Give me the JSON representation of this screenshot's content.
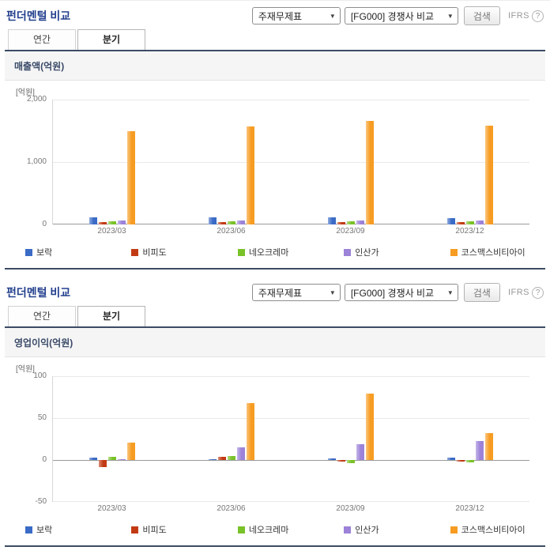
{
  "colors": {
    "accent_navy": "#3c4b64",
    "title_blue": "#24408e",
    "panel_bg": "#f5f5f5"
  },
  "sections": [
    {
      "title": "펀더멘털 비교",
      "controls": {
        "statement_select_value": "주재무제표",
        "compare_select_value": "[FG000] 경쟁사 비교",
        "search_button": "검색",
        "ifrs_label": "IFRS",
        "help_icon": "?"
      },
      "tabs": [
        {
          "label": "연간",
          "active": false
        },
        {
          "label": "분기",
          "active": true
        }
      ],
      "panel_title": "매출액(억원)"
    },
    {
      "title": "펀더멘털 비교",
      "controls": {
        "statement_select_value": "주재무제표",
        "compare_select_value": "[FG000] 경쟁사 비교",
        "search_button": "검색",
        "ifrs_label": "IFRS",
        "help_icon": "?"
      },
      "tabs": [
        {
          "label": "연간",
          "active": false
        },
        {
          "label": "분기",
          "active": true
        }
      ],
      "panel_title": "영업이익(억원)"
    }
  ],
  "chart_data": [
    {
      "type": "bar",
      "title": "매출액(억원)",
      "unit_label": "[억원]",
      "categories": [
        "2023/03",
        "2023/06",
        "2023/09",
        "2023/12"
      ],
      "series": [
        {
          "name": "보락",
          "color": "#3a6bc6",
          "values": [
            115,
            110,
            115,
            105
          ]
        },
        {
          "name": "비피도",
          "color": "#c23a14",
          "values": [
            40,
            35,
            40,
            35
          ]
        },
        {
          "name": "네오크레마",
          "color": "#79c228",
          "values": [
            55,
            50,
            55,
            45
          ]
        },
        {
          "name": "인산가",
          "color": "#9c82d8",
          "values": [
            65,
            60,
            70,
            65
          ]
        },
        {
          "name": "코스맥스비티아이",
          "color": "#f79c22",
          "values": [
            1500,
            1570,
            1660,
            1580
          ]
        }
      ],
      "ylim": [
        0,
        2000
      ],
      "yticks": [
        0,
        1000,
        2000
      ],
      "grid": true,
      "legend_position": "bottom"
    },
    {
      "type": "bar",
      "title": "영업이익(억원)",
      "unit_label": "[억원]",
      "categories": [
        "2023/03",
        "2023/06",
        "2023/09",
        "2023/12"
      ],
      "series": [
        {
          "name": "보락",
          "color": "#3a6bc6",
          "values": [
            3,
            1,
            2,
            3
          ]
        },
        {
          "name": "비피도",
          "color": "#c23a14",
          "values": [
            -8,
            4,
            -2,
            -2
          ]
        },
        {
          "name": "네오크레마",
          "color": "#79c228",
          "values": [
            4,
            5,
            -4,
            -3
          ]
        },
        {
          "name": "인산가",
          "color": "#9c82d8",
          "values": [
            1,
            15,
            19,
            23
          ]
        },
        {
          "name": "코스맥스비티아이",
          "color": "#f79c22",
          "values": [
            21,
            68,
            79,
            32
          ]
        }
      ],
      "ylim": [
        -50,
        100
      ],
      "yticks": [
        -50,
        0,
        50,
        100
      ],
      "grid": true,
      "legend_position": "bottom"
    }
  ]
}
